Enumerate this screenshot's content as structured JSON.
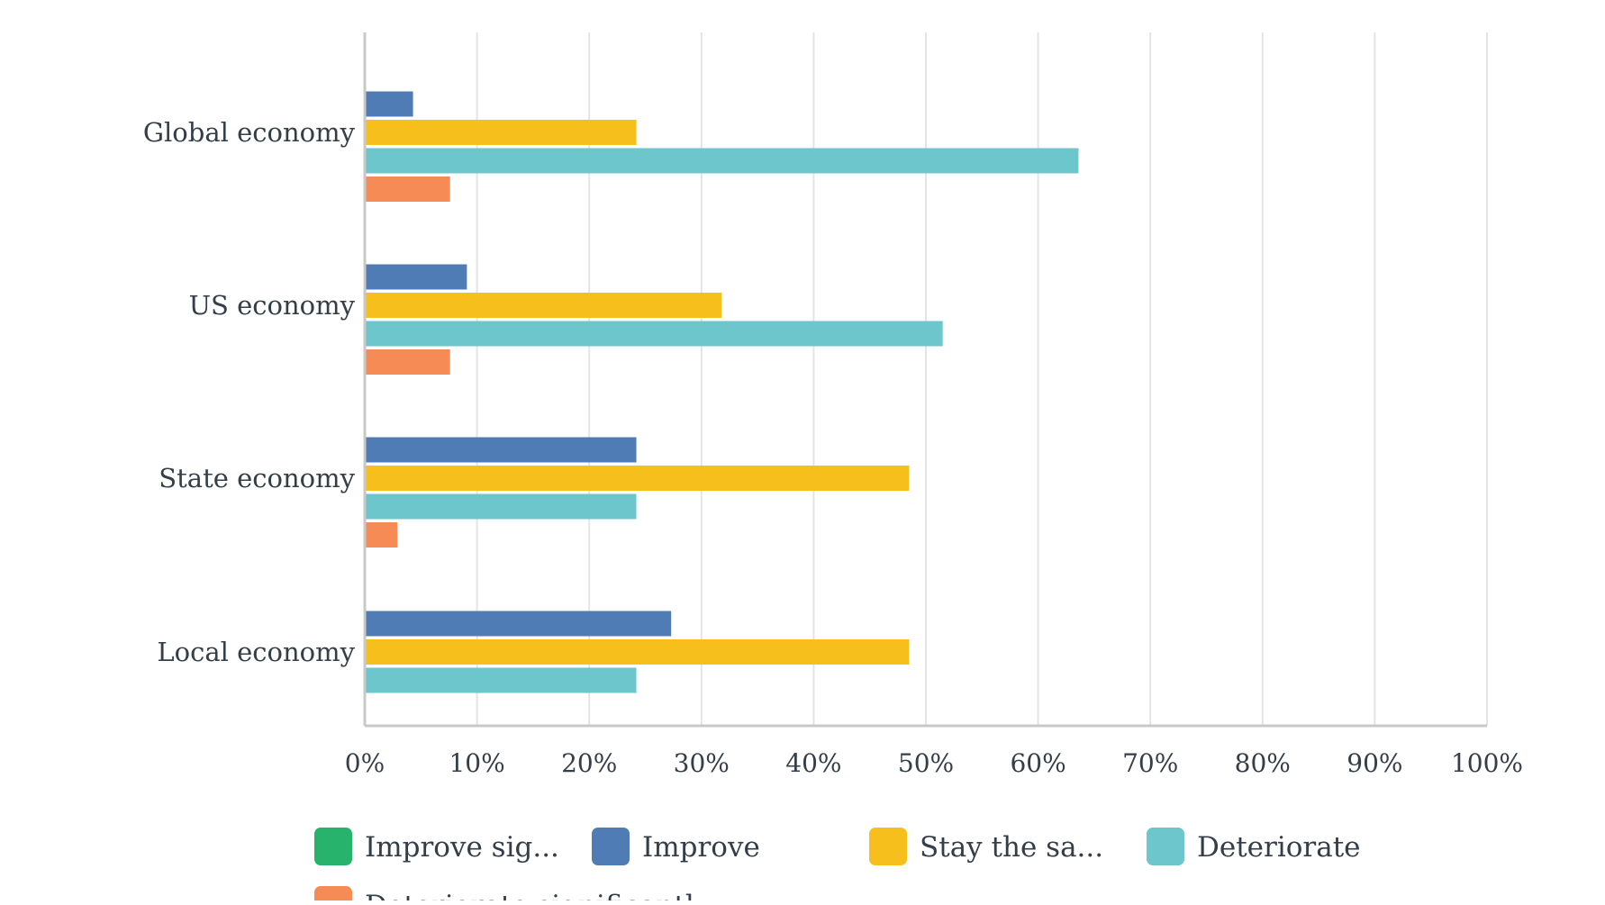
{
  "chart_data": {
    "type": "bar",
    "orientation": "horizontal",
    "categories": [
      "Global economy",
      "US economy",
      "State economy",
      "Local economy"
    ],
    "series": [
      {
        "name": "Improve sig...",
        "color": "#27b36b",
        "values": [
          0,
          0,
          0,
          0
        ]
      },
      {
        "name": "Improve",
        "color": "#507cb6",
        "values": [
          4.3,
          9.1,
          24.2,
          27.3
        ]
      },
      {
        "name": "Stay the sa...",
        "color": "#f6bf1b",
        "values": [
          24.2,
          31.8,
          48.5,
          48.5
        ]
      },
      {
        "name": "Deteriorate",
        "color": "#6cc6cc",
        "values": [
          63.6,
          51.5,
          24.2,
          24.2
        ]
      },
      {
        "name": "Deteriorate significantly",
        "color": "#f68b56",
        "values": [
          7.6,
          7.6,
          2.9,
          0
        ]
      }
    ],
    "xlim": [
      0,
      100
    ],
    "xticks": [
      "0%",
      "10%",
      "20%",
      "30%",
      "40%",
      "50%",
      "60%",
      "70%",
      "80%",
      "90%",
      "100%"
    ],
    "grid": true,
    "legend": "bottom",
    "title": "",
    "xlabel": "",
    "ylabel": ""
  }
}
